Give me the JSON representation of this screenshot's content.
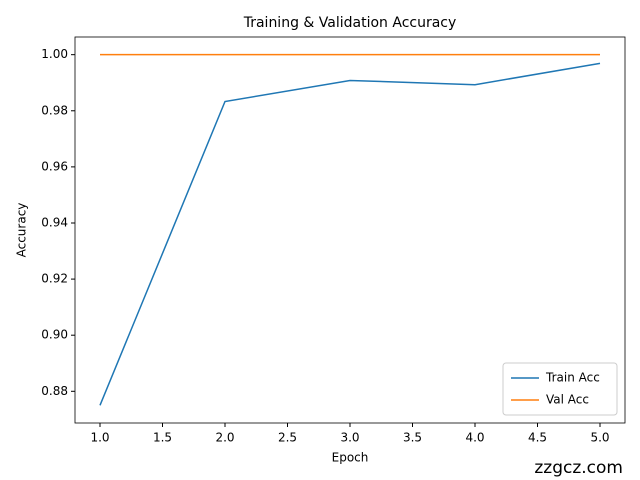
{
  "chart_data": {
    "type": "line",
    "title": "Training & Validation Accuracy",
    "x_label": "Epoch",
    "y_label": "Accuracy",
    "x": [
      1,
      2,
      3,
      4,
      5
    ],
    "series": [
      {
        "name": "Train Acc",
        "color": "#1f77b4",
        "values": [
          0.875,
          0.9833,
          0.9908,
          0.9893,
          0.9969
        ]
      },
      {
        "name": "Val Acc",
        "color": "#ff7f0e",
        "values": [
          1,
          1,
          1,
          1,
          1
        ]
      }
    ],
    "xlim": [
      0.8,
      5.2
    ],
    "xticks": [
      {
        "value": 1,
        "label": "1.0"
      },
      1.5,
      {
        "value": 2,
        "label": "2.0"
      },
      2.5,
      {
        "value": 3,
        "label": "3.0"
      },
      3.5,
      {
        "value": 4,
        "label": "4.0"
      },
      4.5,
      {
        "value": 5,
        "label": "5.0"
      }
    ],
    "ylim": [
      0.8687,
      1.0063
    ],
    "yticks": [
      0.88,
      {
        "value": 0.9,
        "label": "0.90"
      },
      0.92,
      0.94,
      0.96,
      0.98,
      {
        "value": 1,
        "label": "1.00"
      }
    ],
    "legend": "lower right",
    "watermark": "zzgcz.com"
  }
}
